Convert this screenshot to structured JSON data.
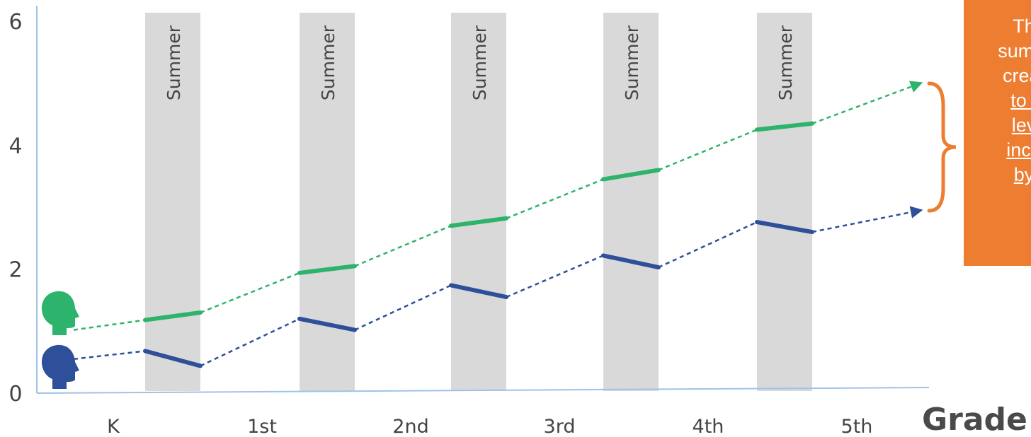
{
  "chart_data": {
    "type": "line",
    "title": "",
    "xlabel": "Grade",
    "ylabel": "",
    "ylim": [
      0,
      6
    ],
    "yticks": [
      0,
      2,
      4,
      6
    ],
    "categories": [
      "K",
      "1st",
      "2nd",
      "3rd",
      "4th",
      "5th"
    ],
    "band_label": "Summer",
    "grid": false,
    "series": [
      {
        "color": "#2db36b",
        "start": 1.02,
        "summers": [
          [
            1.18,
            1.3
          ],
          [
            1.94,
            2.05
          ],
          [
            2.7,
            2.82
          ],
          [
            3.45,
            3.6
          ],
          [
            4.25,
            4.35
          ]
        ],
        "end": 5.0
      },
      {
        "color": "#2e4f99",
        "start": 0.55,
        "summers": [
          [
            0.68,
            0.44
          ],
          [
            1.2,
            1.02
          ],
          [
            1.74,
            1.55
          ],
          [
            2.22,
            2.03
          ],
          [
            2.76,
            2.6
          ]
        ],
        "end": 2.95
      }
    ],
    "icons": [
      "green-head-icon",
      "blue-head-icon"
    ]
  },
  "callout": {
    "lines": [
      "Th",
      "summ",
      "creat",
      "to t",
      "lev",
      "inco",
      "by"
    ],
    "underlined_from": 3,
    "color": "#ed7d31"
  }
}
